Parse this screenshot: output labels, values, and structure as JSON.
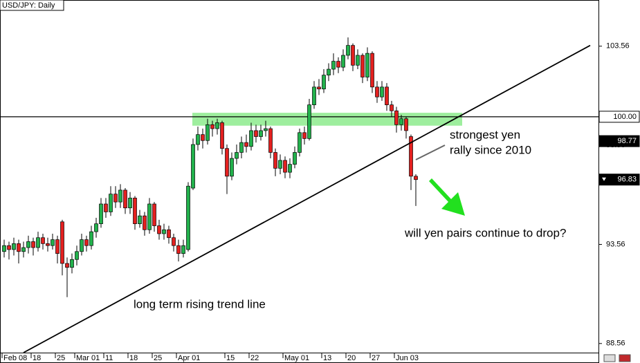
{
  "chart_data": {
    "type": "candlestick",
    "title": "USD/JPY: Daily",
    "categories": [
      "Feb 08",
      null,
      null,
      null,
      null,
      null,
      "18",
      null,
      null,
      null,
      null,
      "25",
      null,
      null,
      null,
      "Mar 01",
      null,
      null,
      null,
      null,
      null,
      "11",
      null,
      null,
      null,
      null,
      "18",
      null,
      null,
      null,
      null,
      "25",
      null,
      null,
      null,
      null,
      "Apr 01",
      null,
      null,
      null,
      null,
      null,
      null,
      null,
      null,
      null,
      "15",
      null,
      null,
      null,
      null,
      "22",
      null,
      null,
      null,
      null,
      null,
      null,
      "May 01",
      null,
      null,
      null,
      null,
      null,
      null,
      null,
      "13",
      null,
      null,
      null,
      null,
      "20",
      null,
      null,
      null,
      null,
      "27",
      null,
      null,
      null,
      null,
      "Jun 03",
      null,
      null,
      null,
      null
    ],
    "open": [
      93.2,
      93.5,
      93.3,
      93.6,
      93.2,
      93.4,
      93.7,
      93.4,
      93.9,
      93.6,
      93.5,
      93.8,
      94.7,
      92.6,
      92.4,
      92.8,
      93.2,
      93.8,
      93.5,
      94.2,
      94.6,
      95.6,
      95.2,
      96.1,
      95.7,
      96.3,
      95.4,
      95.9,
      94.6,
      95.0,
      94.3,
      95.6,
      94.5,
      94.1,
      94.3,
      93.9,
      93.5,
      93.1,
      93.3,
      96.4,
      98.6,
      99.1,
      98.8,
      99.6,
      99.4,
      99.7,
      98.4,
      97.0,
      97.9,
      98.2,
      98.7,
      98.5,
      99.3,
      99.0,
      99.3,
      99.4,
      98.2,
      97.4,
      97.8,
      97.2,
      97.6,
      98.2,
      99.2,
      98.9,
      100.6,
      101.5,
      101.4,
      102.1,
      102.4,
      102.8,
      102.5,
      103.1,
      103.6,
      102.6,
      103.1,
      102.0,
      103.2,
      101.5,
      101.0,
      101.5,
      100.6,
      100.3,
      99.6,
      99.9,
      99.0,
      97.0
    ],
    "high": [
      93.8,
      93.7,
      93.9,
      93.8,
      93.7,
      94.0,
      93.9,
      94.2,
      94.1,
      93.9,
      94.1,
      94.0,
      94.8,
      92.9,
      93.1,
      93.5,
      94.1,
      94.0,
      94.5,
      94.9,
      95.9,
      95.9,
      96.5,
      96.5,
      96.6,
      96.4,
      96.2,
      96.0,
      95.3,
      95.2,
      95.9,
      95.7,
      94.8,
      94.6,
      94.5,
      94.1,
      93.8,
      93.8,
      96.7,
      98.9,
      99.5,
      99.4,
      99.9,
      99.8,
      99.9,
      99.8,
      98.6,
      98.2,
      98.6,
      99.0,
      99.1,
      99.7,
      99.6,
      99.6,
      99.8,
      99.5,
      98.4,
      98.1,
      98.0,
      97.9,
      98.5,
      99.4,
      99.5,
      100.9,
      101.8,
      101.9,
      102.4,
      102.7,
      103.2,
      103.0,
      103.4,
      104.0,
      103.7,
      103.4,
      103.2,
      103.5,
      103.3,
      101.8,
      101.8,
      101.7,
      100.8,
      100.5,
      100.1,
      100.0,
      99.1,
      97.1
    ],
    "low": [
      92.9,
      92.8,
      93.0,
      92.6,
      92.9,
      93.1,
      93.0,
      93.2,
      93.3,
      93.2,
      93.3,
      92.6,
      92.0,
      90.9,
      92.1,
      92.5,
      93.0,
      93.2,
      93.3,
      93.9,
      94.4,
      94.9,
      95.0,
      95.4,
      95.4,
      95.1,
      95.1,
      94.3,
      94.4,
      94.0,
      94.1,
      94.2,
      93.8,
      93.8,
      93.6,
      93.2,
      92.7,
      92.9,
      93.2,
      96.3,
      98.3,
      98.4,
      98.6,
      99.0,
      99.1,
      98.1,
      96.1,
      96.8,
      97.6,
      97.9,
      98.2,
      98.3,
      98.7,
      98.8,
      99.0,
      97.9,
      97.0,
      97.1,
      96.9,
      96.9,
      97.4,
      98.0,
      98.6,
      98.8,
      100.4,
      101.1,
      101.2,
      101.8,
      102.1,
      102.2,
      102.3,
      102.9,
      102.3,
      102.4,
      101.7,
      101.8,
      101.2,
      100.7,
      100.8,
      100.3,
      100.0,
      99.2,
      99.3,
      98.9,
      96.3,
      95.5
    ],
    "close": [
      93.5,
      93.3,
      93.6,
      93.2,
      93.4,
      93.7,
      93.4,
      93.9,
      93.6,
      93.5,
      93.8,
      93.1,
      92.6,
      92.4,
      92.8,
      93.2,
      93.8,
      93.5,
      94.2,
      94.6,
      95.6,
      95.2,
      96.1,
      95.7,
      96.3,
      95.4,
      95.9,
      94.6,
      95.0,
      94.3,
      95.6,
      94.5,
      94.1,
      94.3,
      93.9,
      93.5,
      93.1,
      93.5,
      96.5,
      98.6,
      99.1,
      98.8,
      99.6,
      99.4,
      99.7,
      98.4,
      97.0,
      97.9,
      98.2,
      98.7,
      98.5,
      99.3,
      99.0,
      99.3,
      99.4,
      98.2,
      97.4,
      97.8,
      97.2,
      97.6,
      98.2,
      99.2,
      98.9,
      100.6,
      101.5,
      101.4,
      102.1,
      102.4,
      102.8,
      102.5,
      103.1,
      103.6,
      102.6,
      103.1,
      102.0,
      103.2,
      101.5,
      101.0,
      101.5,
      100.6,
      100.3,
      99.6,
      99.9,
      99.3,
      97.0,
      96.83
    ],
    "up_color": "#22b14c",
    "down_color": "#e3201f",
    "ylim": [
      88.1,
      105.89
    ],
    "yticks": [
      88.56,
      93.56,
      98.56,
      103.56
    ],
    "hline": 100,
    "zone": [
      99.55,
      100.2
    ],
    "zone_color": "#7ee87e",
    "trend_line": {
      "label": "long term rising trend line",
      "from": [
        4,
        88.1
      ],
      "to": [
        121,
        103.6
      ]
    },
    "price_labels": [
      {
        "value": 100,
        "label": "100.00",
        "filled": false
      },
      {
        "value": 98.77,
        "label": "98.77",
        "filled": true
      },
      {
        "value": 96.83,
        "label": "96.83",
        "filled": true
      }
    ],
    "annotations": [
      "strongest yen",
      "rally since 2010",
      "will yen pairs continue to drop?"
    ]
  }
}
